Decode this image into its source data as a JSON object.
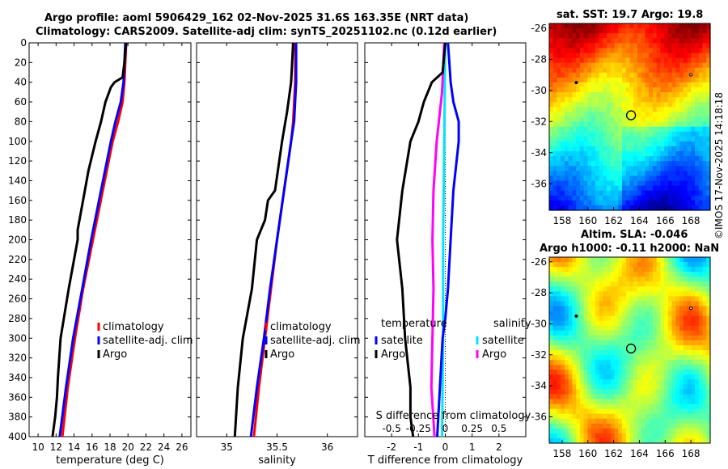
{
  "titles": {
    "line1": "Argo profile: aoml 5906429_162 02-Nov-2025 31.6S 163.35E (NRT data)",
    "line2": "Climatology: CARS2009. Satellite-adj clim: synTS_20251102.nc (0.12d earlier)",
    "sst_title": "sat. SST: 19.7 Argo: 19.8",
    "sla_title1": "Altim. SLA: -0.046",
    "sla_title2": "Argo h1000: -0.11 h2000: NaN",
    "side_label": "©IMOS 17-Nov-2025 14:18:18"
  },
  "colors": {
    "climatology": "#ff0000",
    "satellite": "#0000ff",
    "argo": "#000000",
    "sal_satellite": "#00e5ff",
    "sal_argo": "#ff00ff"
  },
  "chart_data": [
    {
      "type": "line",
      "id": "temperature",
      "xlabel": "temperature (deg C)",
      "ylabel": "",
      "xlim": [
        9,
        27
      ],
      "ylim": [
        400,
        0
      ],
      "xticks": [
        10,
        12,
        14,
        16,
        18,
        20,
        22,
        24,
        26
      ],
      "yticks": [
        0,
        20,
        40,
        60,
        80,
        100,
        120,
        140,
        160,
        180,
        200,
        220,
        240,
        260,
        280,
        300,
        320,
        340,
        360,
        380,
        400
      ],
      "legend": [
        "climatology",
        "satellite-adj. clim",
        "Argo"
      ],
      "series": [
        {
          "name": "climatology",
          "depth": [
            0,
            20,
            40,
            60,
            80,
            100,
            150,
            200,
            250,
            300,
            350,
            400
          ],
          "values": [
            19.8,
            19.7,
            19.6,
            19.4,
            18.9,
            18.3,
            17.2,
            16.1,
            15.0,
            14.1,
            13.3,
            12.7
          ]
        },
        {
          "name": "satellite-adj. clim",
          "depth": [
            0,
            20,
            40,
            60,
            80,
            100,
            150,
            200,
            250,
            300,
            350,
            400
          ],
          "values": [
            19.7,
            19.6,
            19.5,
            19.2,
            18.6,
            18.1,
            17.0,
            15.9,
            14.9,
            13.9,
            13.1,
            12.4
          ]
        },
        {
          "name": "Argo",
          "depth": [
            0,
            20,
            35,
            40,
            45,
            50,
            60,
            80,
            100,
            130,
            160,
            190,
            200,
            250,
            300,
            340,
            360,
            380,
            400
          ],
          "values": [
            19.8,
            19.6,
            19.4,
            18.5,
            18.1,
            17.9,
            17.5,
            17.0,
            16.4,
            15.6,
            15.0,
            14.4,
            14.4,
            13.4,
            12.5,
            12.2,
            12.1,
            11.9,
            11.6
          ]
        }
      ]
    },
    {
      "type": "line",
      "id": "salinity",
      "xlabel": "salinity",
      "ylabel": "",
      "xlim": [
        34.7,
        36.3
      ],
      "ylim": [
        400,
        0
      ],
      "xticks": [
        35,
        35.5,
        36
      ],
      "legend": [
        "climatology",
        "satellite-adj. clim",
        "Argo"
      ],
      "series": [
        {
          "name": "climatology",
          "depth": [
            0,
            40,
            80,
            100,
            150,
            200,
            250,
            300,
            350,
            400
          ],
          "values": [
            35.68,
            35.68,
            35.66,
            35.64,
            35.57,
            35.5,
            35.44,
            35.38,
            35.32,
            35.27
          ]
        },
        {
          "name": "satellite-adj. clim",
          "depth": [
            0,
            40,
            80,
            100,
            150,
            200,
            250,
            300,
            350,
            400
          ],
          "values": [
            35.69,
            35.69,
            35.67,
            35.64,
            35.57,
            35.5,
            35.43,
            35.37,
            35.3,
            35.24
          ]
        },
        {
          "name": "Argo",
          "depth": [
            0,
            40,
            70,
            100,
            150,
            160,
            180,
            200,
            250,
            300,
            350,
            400
          ],
          "values": [
            35.66,
            35.64,
            35.6,
            35.55,
            35.48,
            35.41,
            35.38,
            35.3,
            35.25,
            35.16,
            35.11,
            35.08
          ]
        }
      ]
    },
    {
      "type": "line",
      "id": "differences",
      "xlabel": "T difference from climatology",
      "top_xlabel": "S difference from climatology",
      "xlim": [
        -3,
        3
      ],
      "ylim": [
        400,
        0
      ],
      "xticks": [
        -2,
        -1,
        0,
        1,
        2
      ],
      "top_xticks": [
        -0.5,
        -0.25,
        0,
        0.25,
        0.5
      ],
      "top_xlim": [
        -0.75,
        0.75
      ],
      "legend_temperature": {
        "title": "temperature",
        "items": [
          "satellite",
          "Argo"
        ]
      },
      "legend_salinity": {
        "title": "salinity",
        "items": [
          "satellite",
          "Argo"
        ]
      },
      "series": [
        {
          "name": "temperature satellite",
          "axis": "T",
          "depth": [
            0,
            20,
            40,
            60,
            80,
            100,
            150,
            200,
            250,
            280,
            300,
            400
          ],
          "values": [
            0.1,
            0.15,
            0.2,
            0.3,
            0.5,
            0.5,
            0.3,
            0.2,
            0.1,
            0,
            -0.1,
            -0.3
          ]
        },
        {
          "name": "temperature Argo",
          "axis": "T",
          "depth": [
            0,
            30,
            40,
            60,
            80,
            100,
            150,
            200,
            250,
            300,
            350,
            380,
            400
          ],
          "values": [
            0,
            -0.1,
            -0.5,
            -0.8,
            -1.0,
            -1.3,
            -1.6,
            -1.8,
            -1.6,
            -1.5,
            -1.3,
            -1.3,
            -1.2
          ]
        },
        {
          "name": "salinity satellite",
          "axis": "S",
          "depth": [
            0,
            100,
            200,
            300,
            400
          ],
          "values": [
            0,
            -0.01,
            -0.02,
            -0.02,
            -0.03
          ]
        },
        {
          "name": "salinity Argo",
          "axis": "S",
          "depth": [
            0,
            50,
            100,
            150,
            200,
            250,
            300,
            350,
            400
          ],
          "values": [
            -0.01,
            -0.03,
            -0.08,
            -0.11,
            -0.12,
            -0.11,
            -0.12,
            -0.13,
            -0.1
          ]
        }
      ]
    },
    {
      "type": "heatmap",
      "id": "sst-map",
      "title": "sat. SST: 19.7 Argo: 19.8",
      "xlim": [
        157,
        169.5
      ],
      "ylim": [
        -37.7,
        -25.7
      ],
      "xticks": [
        158,
        160,
        162,
        164,
        166,
        168
      ],
      "yticks": [
        -26,
        -28,
        -30,
        -32,
        -34,
        -36
      ],
      "argo_position": [
        163.35,
        -31.6
      ]
    },
    {
      "type": "heatmap",
      "id": "sla-map",
      "title": "Altim. SLA: -0.046 / Argo h1000: -0.11 h2000: NaN",
      "xlim": [
        157,
        169.5
      ],
      "ylim": [
        -37.7,
        -25.7
      ],
      "xticks": [
        158,
        160,
        162,
        164,
        166,
        168
      ],
      "yticks": [
        -26,
        -28,
        -30,
        -32,
        -34,
        -36
      ],
      "argo_position": [
        163.35,
        -31.6
      ]
    }
  ]
}
